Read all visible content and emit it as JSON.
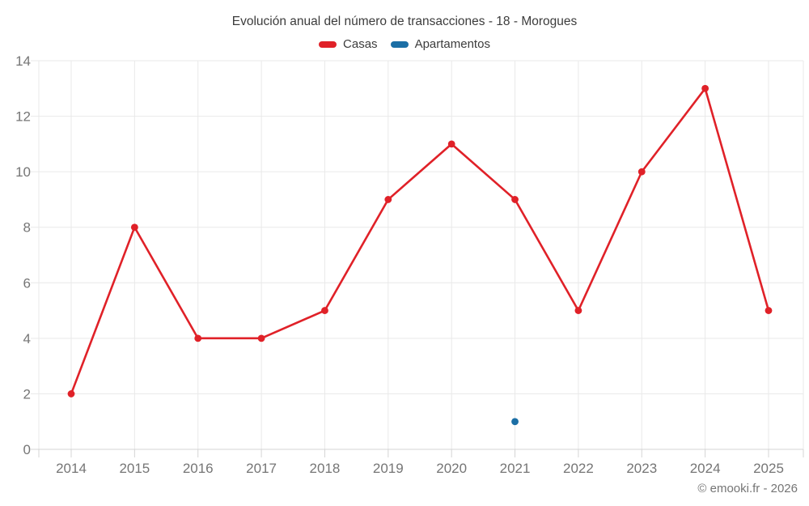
{
  "title": "Evolución anual del número de transacciones - 18 - Morogues",
  "footer": "© emooki.fr - 2026",
  "colors": {
    "casas": "#e02128",
    "apartamentos": "#1b6ea5",
    "grid": "#e9e9e9",
    "axis": "#d4d4d4",
    "tick_label": "#757575",
    "title_text": "#3c3c3c"
  },
  "legend": {
    "items": [
      {
        "label": "Casas",
        "color": "#e02128"
      },
      {
        "label": "Apartamentos",
        "color": "#1b6ea5"
      }
    ]
  },
  "chart_data": {
    "type": "line",
    "title": "Evolución anual del número de transacciones - 18 - Morogues",
    "categories": [
      "2014",
      "2015",
      "2016",
      "2017",
      "2018",
      "2019",
      "2020",
      "2021",
      "2022",
      "2023",
      "2024",
      "2025"
    ],
    "series": [
      {
        "name": "Casas",
        "color": "#e02128",
        "values": [
          2,
          8,
          4,
          4,
          5,
          9,
          11,
          9,
          5,
          10,
          13,
          5
        ]
      },
      {
        "name": "Apartamentos",
        "color": "#1b6ea5",
        "values": [
          null,
          null,
          null,
          null,
          null,
          null,
          null,
          1,
          null,
          null,
          null,
          null
        ]
      }
    ],
    "xlabel": "",
    "ylabel": "",
    "ylim": [
      0,
      14
    ],
    "y_tick_step": 2,
    "grid": true,
    "legend_position": "top"
  }
}
